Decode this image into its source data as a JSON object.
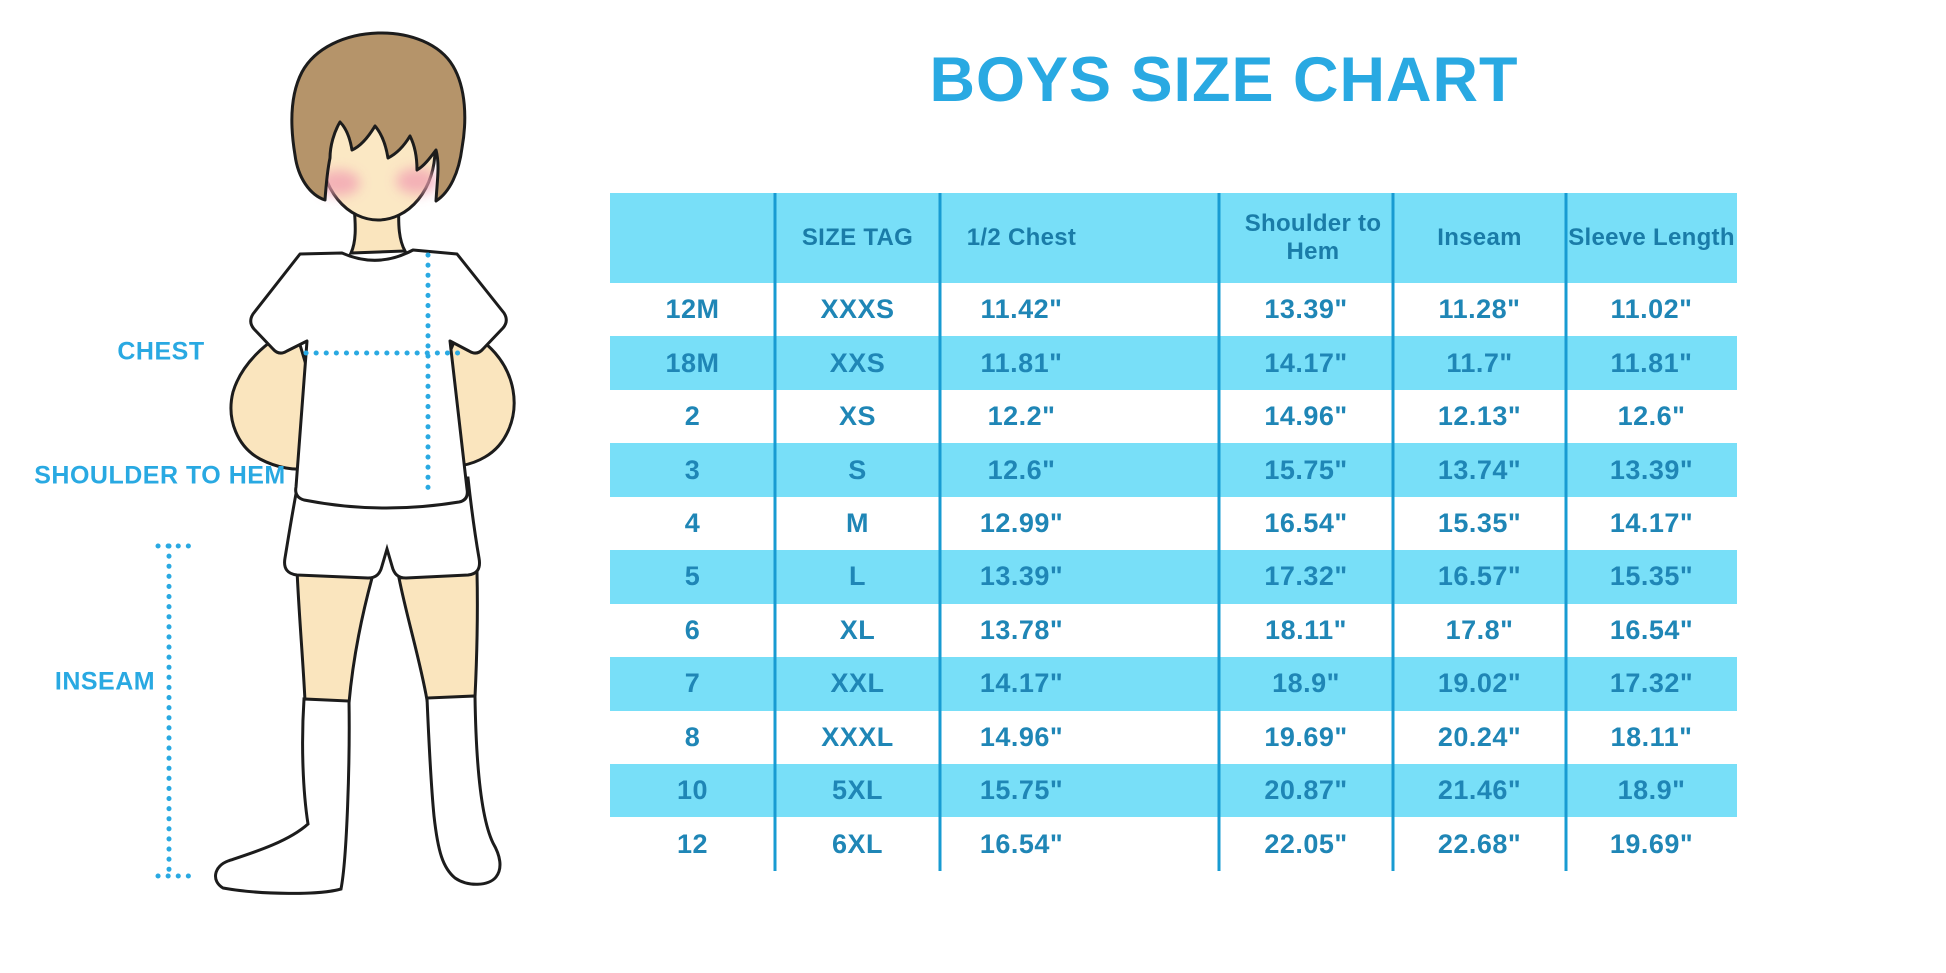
{
  "title": "BOYS SIZE CHART",
  "illustration": {
    "description": "cartoon boy in white t-shirt, shorts and knee socks with dotted measurement guides",
    "labels": {
      "chest": "CHEST",
      "shoulder_to_hem": "SHOULDER TO HEM",
      "inseam": "INSEAM"
    }
  },
  "chart_data": {
    "type": "table",
    "title": "BOYS SIZE CHART",
    "columns": [
      "",
      "SIZE TAG",
      "1/2 Chest",
      "Shoulder to Hem",
      "Inseam",
      "Sleeve Length"
    ],
    "rows": [
      [
        "12M",
        "XXXS",
        "11.42\"",
        "13.39\"",
        "11.28\"",
        "11.02\""
      ],
      [
        "18M",
        "XXS",
        "11.81\"",
        "14.17\"",
        "11.7\"",
        "11.81\""
      ],
      [
        "2",
        "XS",
        "12.2\"",
        "14.96\"",
        "12.13\"",
        "12.6\""
      ],
      [
        "3",
        "S",
        "12.6\"",
        "15.75\"",
        "13.74\"",
        "13.39\""
      ],
      [
        "4",
        "M",
        "12.99\"",
        "16.54\"",
        "15.35\"",
        "14.17\""
      ],
      [
        "5",
        "L",
        "13.39\"",
        "17.32\"",
        "16.57\"",
        "15.35\""
      ],
      [
        "6",
        "XL",
        "13.78\"",
        "18.11\"",
        "17.8\"",
        "16.54\""
      ],
      [
        "7",
        "XXL",
        "14.17\"",
        "18.9\"",
        "19.02\"",
        "17.32\""
      ],
      [
        "8",
        "XXXL",
        "14.96\"",
        "19.69\"",
        "20.24\"",
        "18.11\""
      ],
      [
        "10",
        "5XL",
        "15.75\"",
        "20.87\"",
        "21.46\"",
        "18.9\""
      ],
      [
        "12",
        "6XL",
        "16.54\"",
        "22.05\"",
        "22.68\"",
        "19.69\""
      ]
    ],
    "layout": {
      "stripe_pattern": "alternating white / light-cyan rows, header cyan",
      "grid": "vertical column separators only"
    }
  },
  "colors": {
    "accent_blue": "#29A9E2",
    "table_fill": "#78DFF8",
    "separator": "#189BD2",
    "header_text": "#1A7CA8",
    "cell_text": "#1F86B6",
    "skin": "#FAE5BE",
    "hair": "#B5946A",
    "cheek": "#F2A3B3",
    "outline": "#1C1C1C"
  }
}
